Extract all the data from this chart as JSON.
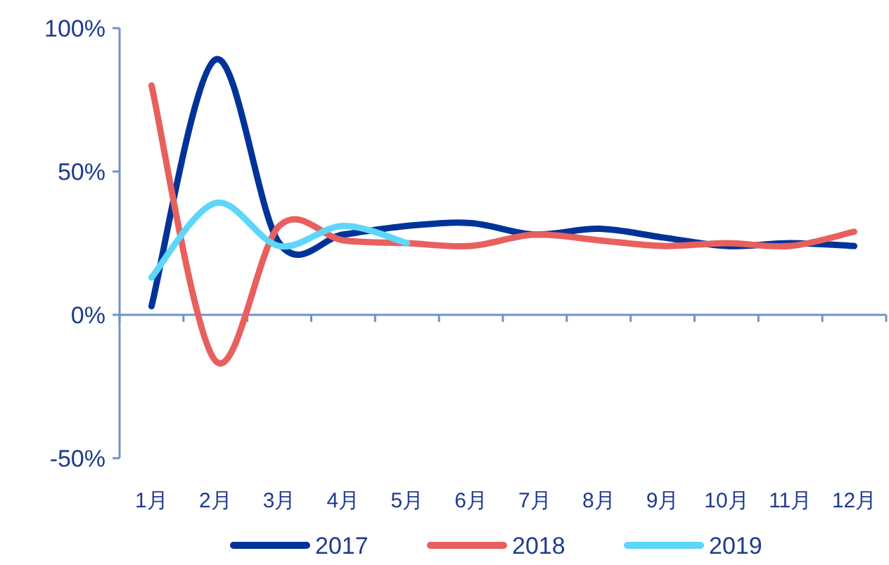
{
  "chart_data": {
    "type": "line",
    "categories": [
      "1月",
      "2月",
      "3月",
      "4月",
      "5月",
      "6月",
      "7月",
      "8月",
      "9月",
      "10月",
      "11月",
      "12月"
    ],
    "series": [
      {
        "name": "2017",
        "color": "#003399",
        "values": [
          3,
          89,
          25,
          28,
          31,
          32,
          28,
          30,
          27,
          24,
          25,
          24
        ]
      },
      {
        "name": "2018",
        "color": "#e8605e",
        "values": [
          80,
          -16,
          31,
          26,
          25,
          24,
          28,
          26,
          24,
          25,
          24,
          29
        ]
      },
      {
        "name": "2019",
        "color": "#5ed6fa",
        "values": [
          13,
          39,
          24,
          31,
          25,
          null,
          null,
          null,
          null,
          null,
          null,
          null
        ]
      }
    ],
    "ylim": [
      -50,
      100
    ],
    "yticks": [
      {
        "value": -50,
        "label": "-50%"
      },
      {
        "value": 0,
        "label": "0%"
      },
      {
        "value": 50,
        "label": "50%"
      },
      {
        "value": 100,
        "label": "100%"
      }
    ],
    "ref_lines": [
      {
        "axis": "y",
        "value": 0,
        "color": "#6f93c8",
        "line_style": "solid"
      }
    ],
    "grid": false,
    "legend": "bottom",
    "marker": "none",
    "line_style": "solid"
  }
}
